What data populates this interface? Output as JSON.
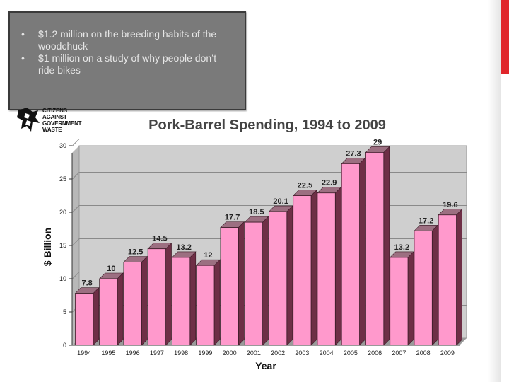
{
  "bullets": [
    "$1.2 million on the breeding habits of the woodchuck",
    "$1 million on a study of why people don’t ride bikes"
  ],
  "logo": {
    "lines": [
      "CITIZENS",
      "AGAINST",
      "GOVERNMENT",
      "WASTE"
    ]
  },
  "colors": {
    "bar_front": "#ff99cc",
    "bar_top": "#9c6f81",
    "bar_side": "#6e2f46",
    "plot_bg": "#cfcfcf",
    "accent": "#e0262b"
  },
  "chart_data": {
    "type": "bar",
    "title": "Pork-Barrel Spending, 1994 to 2009",
    "xlabel": "Year",
    "ylabel": "$ Billion",
    "ylim": [
      0,
      30
    ],
    "yticks": [
      0,
      5,
      10,
      15,
      20,
      25,
      30
    ],
    "grid": true,
    "categories": [
      "1994",
      "1995",
      "1996",
      "1997",
      "1998",
      "1999",
      "2000",
      "2001",
      "2002",
      "2003",
      "2004",
      "2005",
      "2006",
      "2007",
      "2008",
      "2009"
    ],
    "values": [
      7.8,
      10,
      12.5,
      14.5,
      13.2,
      12,
      17.7,
      18.5,
      20.1,
      22.5,
      22.9,
      27.3,
      29,
      13.2,
      17.2,
      19.6
    ],
    "value_labels": [
      "7.8",
      "10",
      "12.5",
      "14.5",
      "13.2",
      "12",
      "17.7",
      "18.5",
      "20.1",
      "22.5",
      "22.9",
      "27.3",
      "29",
      "13.2",
      "17.2",
      "19.6"
    ]
  }
}
